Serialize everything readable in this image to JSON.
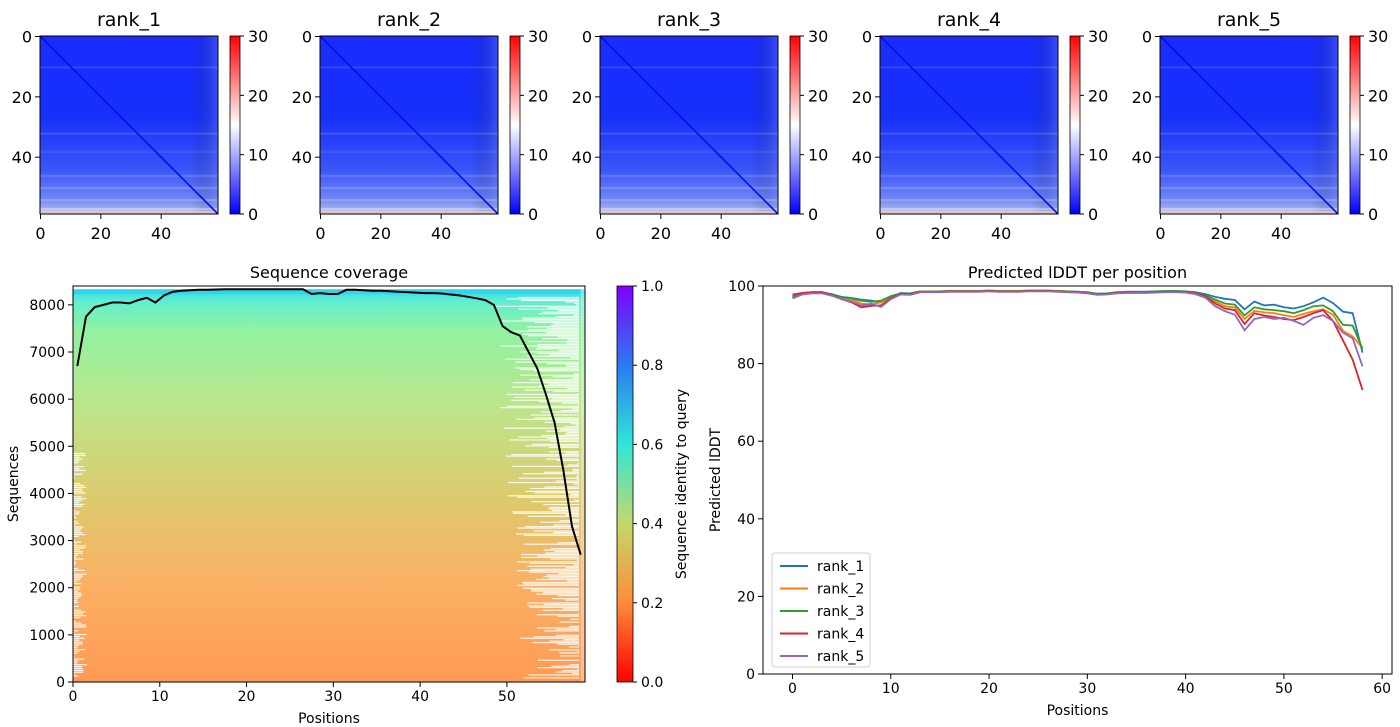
{
  "chart_data": [
    {
      "type": "heatmap",
      "panel": "pae",
      "ticks": [
        0,
        20,
        40
      ],
      "colorbar": {
        "ticks": [
          0,
          10,
          20,
          30
        ],
        "range": [
          0,
          30
        ],
        "colors": [
          "#0000ff",
          "#ffffff",
          "#ff0000"
        ]
      },
      "panels": [
        {
          "title": "rank_1"
        },
        {
          "title": "rank_2"
        },
        {
          "title": "rank_3"
        },
        {
          "title": "rank_4"
        },
        {
          "title": "rank_5"
        }
      ]
    },
    {
      "type": "area",
      "panel": "coverage",
      "title": "Sequence coverage",
      "xlabel": "Positions",
      "ylabel": "Sequences",
      "xlim": [
        0,
        59
      ],
      "ylim": [
        0,
        8400
      ],
      "xticks": [
        0,
        10,
        20,
        30,
        40,
        50
      ],
      "yticks": [
        0,
        1000,
        2000,
        3000,
        4000,
        5000,
        6000,
        7000,
        8000
      ],
      "colorbar": {
        "label": "Sequence identity to query",
        "ticks": [
          0.0,
          0.2,
          0.4,
          0.6,
          0.8,
          1.0
        ]
      },
      "x": [
        0,
        1,
        2,
        3,
        4,
        5,
        6,
        7,
        8,
        9,
        10,
        11,
        12,
        13,
        14,
        15,
        16,
        17,
        18,
        19,
        20,
        21,
        22,
        23,
        24,
        25,
        26,
        27,
        28,
        29,
        30,
        31,
        32,
        33,
        34,
        35,
        36,
        37,
        38,
        39,
        40,
        41,
        42,
        43,
        44,
        45,
        46,
        47,
        48,
        49,
        50,
        51,
        52,
        53,
        54,
        55,
        56,
        57,
        58
      ],
      "coverage": [
        6700,
        7750,
        7950,
        8000,
        8050,
        8050,
        8030,
        8100,
        8150,
        8050,
        8200,
        8280,
        8300,
        8310,
        8320,
        8320,
        8325,
        8330,
        8330,
        8330,
        8330,
        8330,
        8330,
        8330,
        8330,
        8330,
        8330,
        8230,
        8250,
        8230,
        8230,
        8320,
        8320,
        8310,
        8300,
        8300,
        8290,
        8280,
        8270,
        8260,
        8250,
        8250,
        8240,
        8220,
        8200,
        8170,
        8140,
        8100,
        8000,
        7550,
        7420,
        7350,
        7000,
        6650,
        6100,
        5500,
        4500,
        3300,
        2700
      ]
    },
    {
      "type": "line",
      "panel": "plddt",
      "title": "Predicted lDDT per position",
      "xlabel": "Positions",
      "ylabel": "Predicted lDDT",
      "xlim": [
        -3,
        61
      ],
      "ylim": [
        0,
        100
      ],
      "xticks": [
        0,
        10,
        20,
        30,
        40,
        50,
        60
      ],
      "yticks": [
        0,
        20,
        40,
        60,
        80,
        100
      ],
      "legend": "lower-left",
      "x": [
        0,
        1,
        2,
        3,
        4,
        5,
        6,
        7,
        8,
        9,
        10,
        11,
        12,
        13,
        14,
        15,
        16,
        17,
        18,
        19,
        20,
        21,
        22,
        23,
        24,
        25,
        26,
        27,
        28,
        29,
        30,
        31,
        32,
        33,
        34,
        35,
        36,
        37,
        38,
        39,
        40,
        41,
        42,
        43,
        44,
        45,
        46,
        47,
        48,
        49,
        50,
        51,
        52,
        53,
        54,
        55,
        56,
        57,
        58
      ],
      "series": [
        {
          "name": "rank_1",
          "color": "#1f77b4",
          "values": [
            97.0,
            98.2,
            98.4,
            98.4,
            97.9,
            97.2,
            96.9,
            96.5,
            96.2,
            95.8,
            97.0,
            98.2,
            98.1,
            98.6,
            98.6,
            98.6,
            98.7,
            98.7,
            98.7,
            98.7,
            98.8,
            98.7,
            98.7,
            98.7,
            98.8,
            98.8,
            98.8,
            98.7,
            98.6,
            98.5,
            98.4,
            98.0,
            98.1,
            98.4,
            98.5,
            98.5,
            98.5,
            98.6,
            98.7,
            98.7,
            98.6,
            98.4,
            97.9,
            97.2,
            96.7,
            96.4,
            94.0,
            96.0,
            95.0,
            95.2,
            94.5,
            94.2,
            94.8,
            95.8,
            97.0,
            95.6,
            93.4,
            93.0,
            82.8
          ]
        },
        {
          "name": "rank_2",
          "color": "#ff7f0e",
          "values": [
            97.5,
            98.0,
            98.3,
            98.3,
            97.8,
            97.0,
            96.5,
            95.5,
            95.2,
            95.8,
            97.3,
            98.0,
            98.1,
            98.6,
            98.6,
            98.6,
            98.7,
            98.7,
            98.7,
            98.7,
            98.8,
            98.7,
            98.7,
            98.7,
            98.8,
            98.8,
            98.8,
            98.7,
            98.6,
            98.5,
            98.3,
            97.9,
            98.0,
            98.3,
            98.4,
            98.4,
            98.4,
            98.5,
            98.6,
            98.6,
            98.5,
            98.2,
            97.5,
            96.0,
            94.8,
            94.5,
            91.5,
            93.6,
            93.2,
            93.0,
            92.5,
            92.0,
            92.8,
            93.5,
            94.0,
            92.6,
            88.5,
            87.0,
            84.0
          ]
        },
        {
          "name": "rank_3",
          "color": "#2ca02c",
          "values": [
            97.3,
            98.1,
            98.3,
            98.3,
            97.9,
            97.1,
            96.8,
            96.2,
            95.9,
            96.2,
            97.4,
            98.1,
            98.1,
            98.6,
            98.6,
            98.6,
            98.7,
            98.7,
            98.7,
            98.7,
            98.8,
            98.7,
            98.7,
            98.7,
            98.8,
            98.8,
            98.8,
            98.7,
            98.6,
            98.5,
            98.3,
            98.0,
            98.1,
            98.3,
            98.5,
            98.5,
            98.5,
            98.6,
            98.7,
            98.7,
            98.6,
            98.3,
            97.6,
            96.5,
            95.5,
            95.2,
            92.4,
            94.5,
            94.0,
            93.8,
            93.5,
            93.0,
            93.8,
            94.8,
            95.0,
            93.5,
            90.0,
            89.8,
            83.8
          ]
        },
        {
          "name": "rank_4",
          "color": "#d62728",
          "values": [
            97.8,
            98.2,
            98.4,
            98.4,
            97.6,
            96.6,
            95.8,
            94.5,
            94.9,
            95.0,
            96.8,
            98.0,
            97.9,
            98.5,
            98.5,
            98.5,
            98.6,
            98.6,
            98.6,
            98.6,
            98.7,
            98.6,
            98.6,
            98.6,
            98.7,
            98.7,
            98.7,
            98.6,
            98.5,
            98.4,
            98.2,
            97.8,
            97.9,
            98.2,
            98.3,
            98.3,
            98.3,
            98.4,
            98.5,
            98.5,
            98.4,
            98.1,
            97.3,
            95.5,
            94.2,
            93.8,
            90.2,
            93.0,
            92.4,
            92.0,
            91.5,
            91.2,
            92.0,
            93.0,
            93.8,
            91.0,
            86.0,
            81.0,
            73.2
          ]
        },
        {
          "name": "rank_5",
          "color": "#9467bd",
          "values": [
            96.8,
            97.8,
            98.1,
            98.1,
            97.5,
            96.6,
            96.0,
            95.0,
            95.4,
            94.6,
            96.6,
            97.8,
            97.7,
            98.4,
            98.4,
            98.4,
            98.5,
            98.5,
            98.5,
            98.5,
            98.6,
            98.5,
            98.5,
            98.5,
            98.6,
            98.6,
            98.6,
            98.5,
            98.4,
            98.3,
            98.1,
            97.7,
            97.8,
            98.1,
            98.2,
            98.2,
            98.2,
            98.3,
            98.4,
            98.4,
            98.3,
            97.9,
            97.0,
            94.8,
            93.5,
            92.6,
            88.6,
            91.5,
            92.0,
            91.5,
            91.8,
            91.0,
            90.0,
            91.8,
            92.5,
            91.0,
            88.0,
            86.5,
            79.3
          ]
        }
      ]
    }
  ]
}
